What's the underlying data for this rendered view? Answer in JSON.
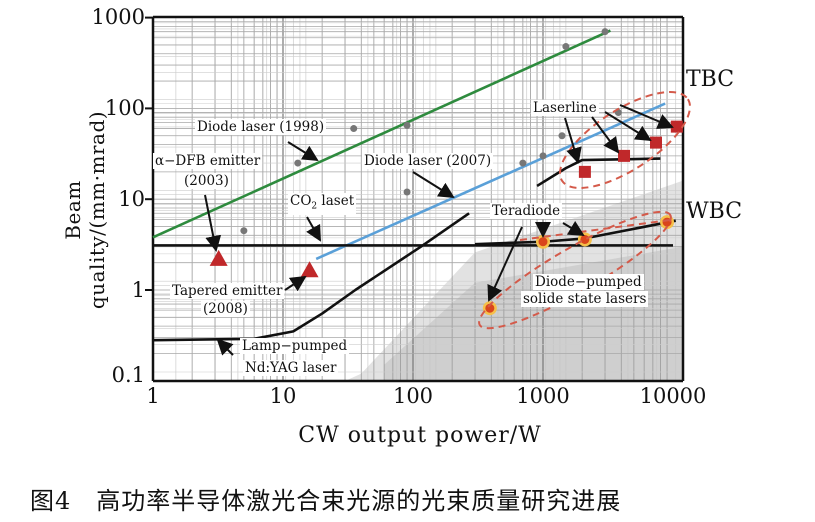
{
  "chart_data": {
    "type": "line",
    "title": "",
    "xlabel": "CW output power/W",
    "ylabel": "Beam quality/(mm·mrad)",
    "x_scale": "log",
    "y_scale": "log",
    "xlim": [
      1,
      10000
    ],
    "ylim": [
      0.1,
      1000
    ],
    "grid": true,
    "x_ticks": [
      "1",
      "10",
      "100",
      "1000",
      "10000"
    ],
    "y_ticks": [
      "0.1",
      "1",
      "10",
      "100",
      "1000"
    ],
    "series": [
      {
        "name": "Diode laser (1998)",
        "kind": "line",
        "color": "#2e8b3e",
        "x": [
          1,
          3300
        ],
        "y": [
          3.8,
          720
        ]
      },
      {
        "name": "Diode laser (2007)",
        "kind": "line",
        "color": "#5aa0d8",
        "x": [
          18,
          8700
        ],
        "y": [
          2.2,
          113
        ]
      },
      {
        "name": "CO2 laset",
        "kind": "line",
        "color": "#111111",
        "x": [
          1,
          10000
        ],
        "y": [
          3.1,
          3.1
        ]
      },
      {
        "name": "Lamp-pumped Nd:YAG laser",
        "kind": "line",
        "color": "#111111",
        "x": [
          1,
          6,
          12,
          20,
          36,
          115,
          270
        ],
        "y": [
          0.28,
          0.29,
          0.35,
          0.55,
          1.0,
          3.0,
          7.0
        ]
      },
      {
        "name": "Diode-pumped solide state lasers",
        "kind": "line",
        "color": "#111111",
        "x": [
          900,
          1500,
          2000,
          8000
        ],
        "y": [
          14,
          22,
          27,
          28
        ]
      },
      {
        "name": "WBC",
        "kind": "line",
        "color": "#111111",
        "x": [
          300,
          1000,
          2100,
          10500
        ],
        "y": [
          3.2,
          3.4,
          3.7,
          5.8
        ]
      },
      {
        "name": "α-DFB emitter (2003)",
        "kind": "triangle",
        "color": "#c0282a",
        "x": [
          3.2
        ],
        "y": [
          2.2
        ]
      },
      {
        "name": "Tapered emitter (2008)",
        "kind": "triangle",
        "color": "#c0282a",
        "x": [
          16
        ],
        "y": [
          1.65
        ]
      },
      {
        "name": "Laserline",
        "kind": "square",
        "color": "#c0282a",
        "x": [
          2100,
          4200,
          7400,
          10700
        ],
        "y": [
          20,
          30,
          42,
          63
        ]
      },
      {
        "name": "Teradiode",
        "kind": "circle",
        "color": "#d9451c",
        "x": [
          390,
          1000,
          2100,
          9000
        ],
        "y": [
          0.63,
          3.4,
          3.6,
          5.6
        ]
      },
      {
        "name": "",
        "kind": "gray-dots",
        "color": "#777777",
        "x": [
          5,
          13,
          35,
          90,
          90,
          700,
          1000,
          1500,
          3000,
          3800,
          1400
        ],
        "y": [
          4.5,
          25,
          60,
          65,
          12,
          25,
          30,
          480,
          700,
          90,
          50
        ]
      }
    ]
  },
  "annotations": {
    "diode1998": "Diode laser (1998)",
    "dfb_line1": "α−DFB emitter",
    "dfb_line2": "(2003)",
    "co2_main": "CO",
    "co2_sub": "2",
    "co2_rest": " laset",
    "diode2007": "Diode laser (2007)",
    "laserline": "Laserline",
    "tbc": "TBC",
    "wbc": "WBC",
    "teradiode": "Teradiode",
    "dpss_line1": "Diode−pumped",
    "dpss_line2": "solide state lasers",
    "tapered_line1": "Tapered emitter",
    "tapered_line2": "(2008)",
    "lamp_line1": "Lamp−pumped",
    "lamp_line2": "Nd:YAG laser"
  },
  "caption": "图4　高功率半导体激光合束光源的光束质量研究进展"
}
